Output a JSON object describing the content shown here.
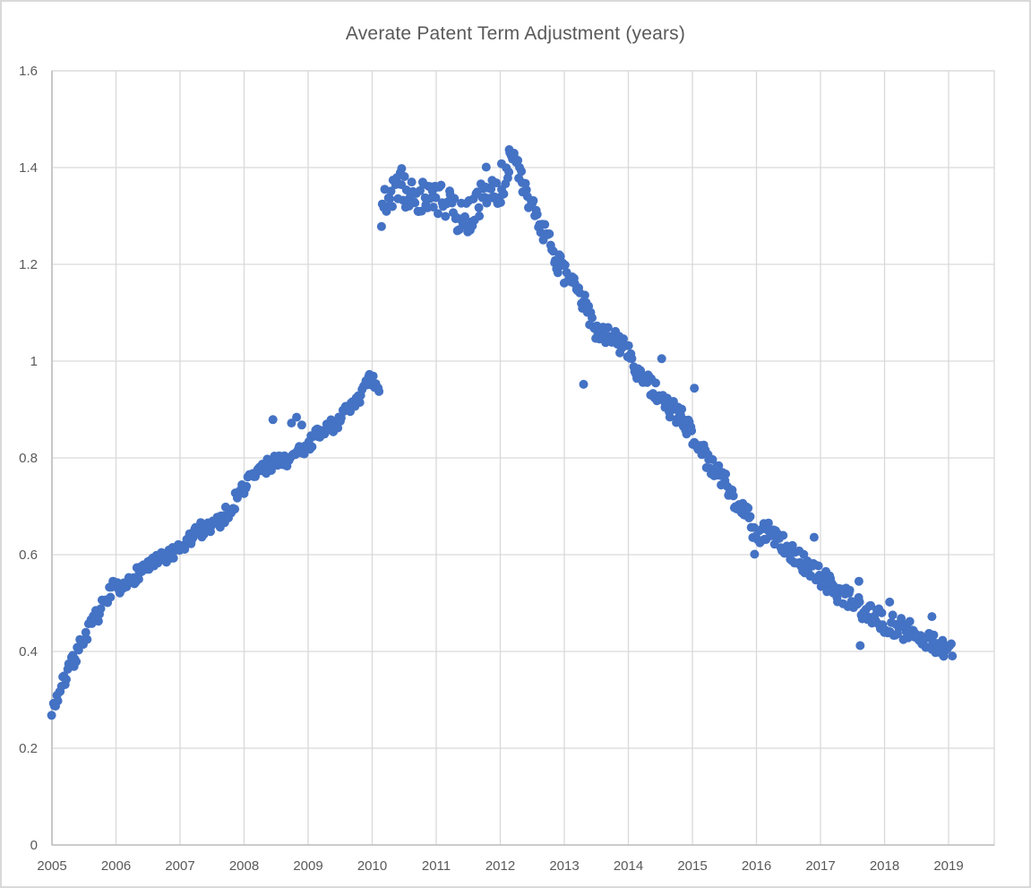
{
  "chart_data": {
    "type": "scatter",
    "title": "Averate Patent Term Adjustment (years)",
    "xlabel": "",
    "ylabel": "",
    "legend": "none",
    "grid": true,
    "xlim": [
      2005,
      2019.713
    ],
    "ylim": [
      0,
      1.6
    ],
    "x_ticks": [
      2005,
      2006,
      2007,
      2008,
      2009,
      2010,
      2011,
      2012,
      2013,
      2014,
      2015,
      2016,
      2017,
      2018,
      2019
    ],
    "y_ticks": [
      {
        "v": 0,
        "label": "0"
      },
      {
        "v": 0.2,
        "label": "0.2"
      },
      {
        "v": 0.4,
        "label": "0.4"
      },
      {
        "v": 0.6,
        "label": "0.6"
      },
      {
        "v": 0.8,
        "label": "0.8"
      },
      {
        "v": 1,
        "label": "1"
      },
      {
        "v": 1.2,
        "label": "1.2"
      },
      {
        "v": 1.4,
        "label": "1.4"
      },
      {
        "v": 1.6,
        "label": "1.6"
      }
    ],
    "colors": {
      "marker": "#4472C4",
      "gridline": "#D9D9D9",
      "axis": "#BFBFBF",
      "label": "#595959",
      "title": "#595959",
      "chart_border": "#D9D9D9",
      "background": "#FFFFFF"
    },
    "marker_radius": 5,
    "point_step_years": 0.019,
    "seed": 7,
    "trend_segments": [
      {
        "name": "rise-2005-2010",
        "jitter": 0.016,
        "keypoints": [
          [
            2005.0,
            0.282
          ],
          [
            2005.06,
            0.296
          ],
          [
            2005.12,
            0.318
          ],
          [
            2005.2,
            0.34
          ],
          [
            2005.3,
            0.372
          ],
          [
            2005.4,
            0.4
          ],
          [
            2005.5,
            0.428
          ],
          [
            2005.62,
            0.455
          ],
          [
            2005.72,
            0.478
          ],
          [
            2005.82,
            0.5
          ],
          [
            2005.92,
            0.53
          ],
          [
            2006.0,
            0.528
          ],
          [
            2006.1,
            0.522
          ],
          [
            2006.2,
            0.542
          ],
          [
            2006.32,
            0.56
          ],
          [
            2006.45,
            0.575
          ],
          [
            2006.58,
            0.58
          ],
          [
            2006.7,
            0.588
          ],
          [
            2006.82,
            0.598
          ],
          [
            2006.95,
            0.602
          ],
          [
            2007.05,
            0.615
          ],
          [
            2007.18,
            0.636
          ],
          [
            2007.3,
            0.65
          ],
          [
            2007.42,
            0.658
          ],
          [
            2007.55,
            0.666
          ],
          [
            2007.68,
            0.676
          ],
          [
            2007.8,
            0.698
          ],
          [
            2007.92,
            0.725
          ],
          [
            2008.05,
            0.75
          ],
          [
            2008.18,
            0.768
          ],
          [
            2008.3,
            0.778
          ],
          [
            2008.42,
            0.788
          ],
          [
            2008.55,
            0.798
          ],
          [
            2008.65,
            0.788
          ],
          [
            2008.78,
            0.8
          ],
          [
            2008.92,
            0.822
          ],
          [
            2009.05,
            0.832
          ],
          [
            2009.18,
            0.85
          ],
          [
            2009.3,
            0.862
          ],
          [
            2009.42,
            0.872
          ],
          [
            2009.55,
            0.888
          ],
          [
            2009.68,
            0.905
          ],
          [
            2009.8,
            0.928
          ],
          [
            2009.9,
            0.945
          ],
          [
            2009.97,
            0.962
          ],
          [
            2010.03,
            0.952
          ],
          [
            2010.08,
            0.938
          ],
          [
            2010.12,
            0.925
          ]
        ]
      },
      {
        "name": "plateau-2010-2012",
        "jitter": 0.034,
        "keypoints": [
          [
            2010.14,
            1.3
          ],
          [
            2010.22,
            1.335
          ],
          [
            2010.3,
            1.345
          ],
          [
            2010.4,
            1.36
          ],
          [
            2010.48,
            1.355
          ],
          [
            2010.6,
            1.34
          ],
          [
            2010.75,
            1.338
          ],
          [
            2010.9,
            1.342
          ],
          [
            2011.0,
            1.338
          ],
          [
            2011.15,
            1.325
          ],
          [
            2011.3,
            1.305
          ],
          [
            2011.45,
            1.292
          ],
          [
            2011.6,
            1.315
          ],
          [
            2011.72,
            1.34
          ],
          [
            2011.82,
            1.355
          ],
          [
            2011.92,
            1.34
          ],
          [
            2012.02,
            1.365
          ],
          [
            2012.12,
            1.395
          ],
          [
            2012.18,
            1.408
          ],
          [
            2012.26,
            1.398
          ],
          [
            2012.35,
            1.36
          ]
        ]
      },
      {
        "name": "decline-2012-2019",
        "jitter": 0.022,
        "keypoints": [
          [
            2012.35,
            1.36
          ],
          [
            2012.45,
            1.33
          ],
          [
            2012.58,
            1.295
          ],
          [
            2012.72,
            1.255
          ],
          [
            2012.86,
            1.215
          ],
          [
            2013.0,
            1.18
          ],
          [
            2013.12,
            1.155
          ],
          [
            2013.22,
            1.148
          ],
          [
            2013.32,
            1.115
          ],
          [
            2013.45,
            1.072
          ],
          [
            2013.6,
            1.06
          ],
          [
            2013.75,
            1.046
          ],
          [
            2013.9,
            1.035
          ],
          [
            2014.02,
            1.015
          ],
          [
            2014.12,
            0.982
          ],
          [
            2014.25,
            0.96
          ],
          [
            2014.4,
            0.94
          ],
          [
            2014.55,
            0.916
          ],
          [
            2014.7,
            0.896
          ],
          [
            2014.85,
            0.88
          ],
          [
            2015.0,
            0.848
          ],
          [
            2015.15,
            0.818
          ],
          [
            2015.3,
            0.78
          ],
          [
            2015.45,
            0.76
          ],
          [
            2015.6,
            0.73
          ],
          [
            2015.72,
            0.705
          ],
          [
            2015.85,
            0.682
          ],
          [
            2015.95,
            0.652
          ],
          [
            2016.08,
            0.642
          ],
          [
            2016.18,
            0.655
          ],
          [
            2016.3,
            0.64
          ],
          [
            2016.45,
            0.615
          ],
          [
            2016.6,
            0.595
          ],
          [
            2016.75,
            0.58
          ],
          [
            2016.9,
            0.562
          ],
          [
            2017.05,
            0.548
          ],
          [
            2017.2,
            0.528
          ],
          [
            2017.35,
            0.516
          ],
          [
            2017.5,
            0.505
          ],
          [
            2017.65,
            0.488
          ],
          [
            2017.8,
            0.474
          ],
          [
            2017.95,
            0.464
          ],
          [
            2018.1,
            0.455
          ],
          [
            2018.25,
            0.448
          ],
          [
            2018.4,
            0.44
          ],
          [
            2018.55,
            0.428
          ],
          [
            2018.7,
            0.422
          ],
          [
            2018.85,
            0.406
          ],
          [
            2018.95,
            0.4
          ],
          [
            2019.02,
            0.412
          ],
          [
            2019.07,
            0.4
          ]
        ]
      }
    ],
    "outliers": [
      [
        2008.45,
        0.879
      ],
      [
        2008.74,
        0.872
      ],
      [
        2008.82,
        0.884
      ],
      [
        2008.9,
        0.868
      ],
      [
        2010.46,
        1.398
      ],
      [
        2011.78,
        1.401
      ],
      [
        2012.02,
        1.408
      ],
      [
        2012.14,
        1.437
      ],
      [
        2012.19,
        1.428
      ],
      [
        2013.3,
        0.952
      ],
      [
        2014.52,
        1.005
      ],
      [
        2015.03,
        0.944
      ],
      [
        2015.97,
        0.601
      ],
      [
        2016.9,
        0.636
      ],
      [
        2017.6,
        0.545
      ],
      [
        2017.62,
        0.412
      ],
      [
        2018.08,
        0.502
      ],
      [
        2018.74,
        0.472
      ]
    ]
  }
}
